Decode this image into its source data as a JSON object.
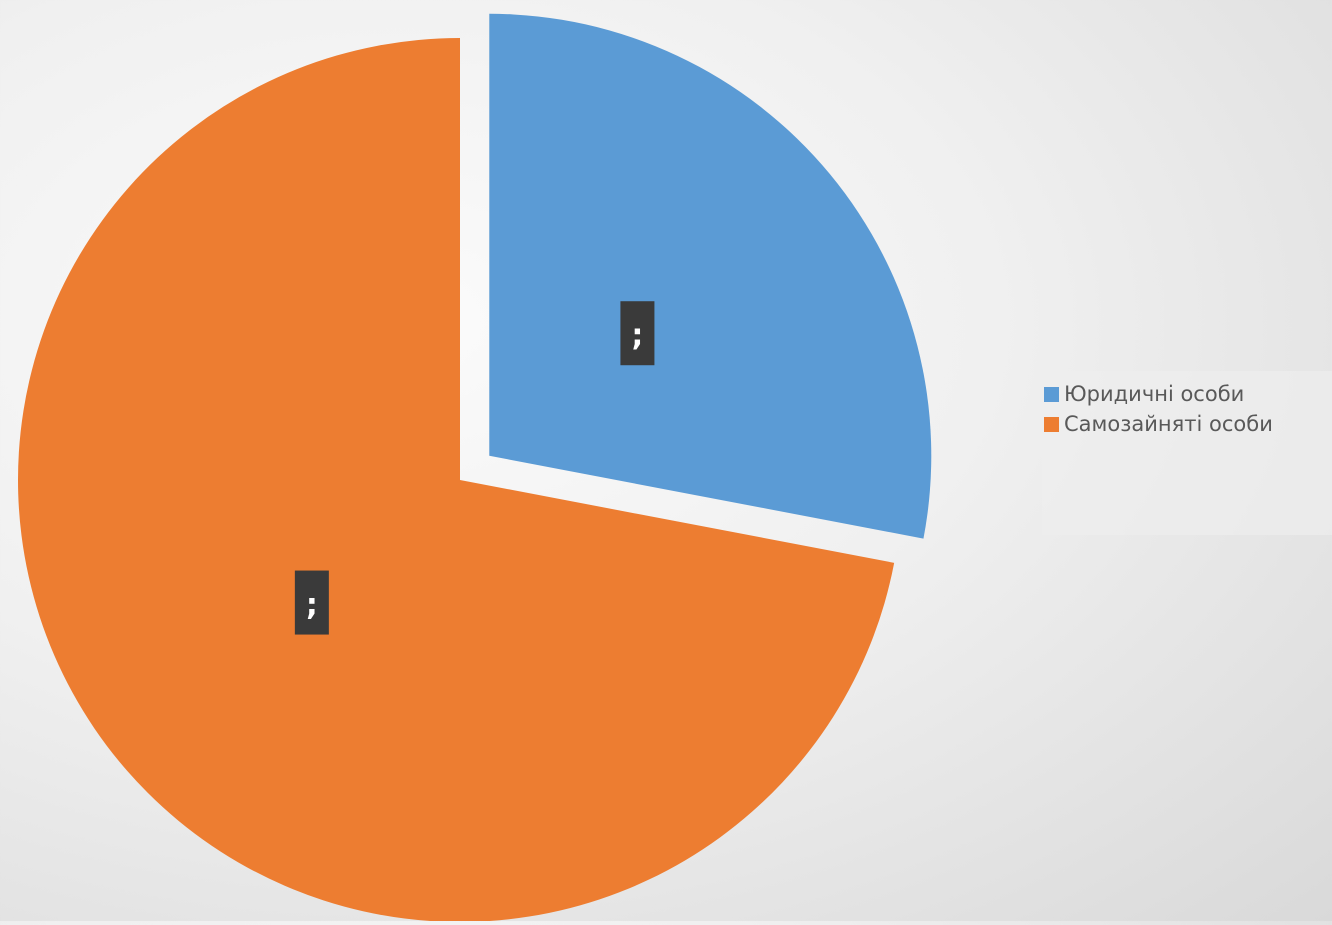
{
  "chart_data": {
    "type": "pie",
    "title": "",
    "slices": [
      {
        "name": "Юридичні особи",
        "value": 28,
        "label": ";",
        "color": "#5b9bd5",
        "exploded": true
      },
      {
        "name": "Самозайняті особи",
        "value": 72,
        "label": ";",
        "color": "#ed7d31",
        "exploded": false
      }
    ],
    "legend": {
      "position": "right",
      "entries": [
        "Юридичні особи",
        "Самозайняті особи"
      ]
    },
    "data_label_style": {
      "background": "#3a3a3a",
      "text_color": "#ffffff"
    }
  }
}
